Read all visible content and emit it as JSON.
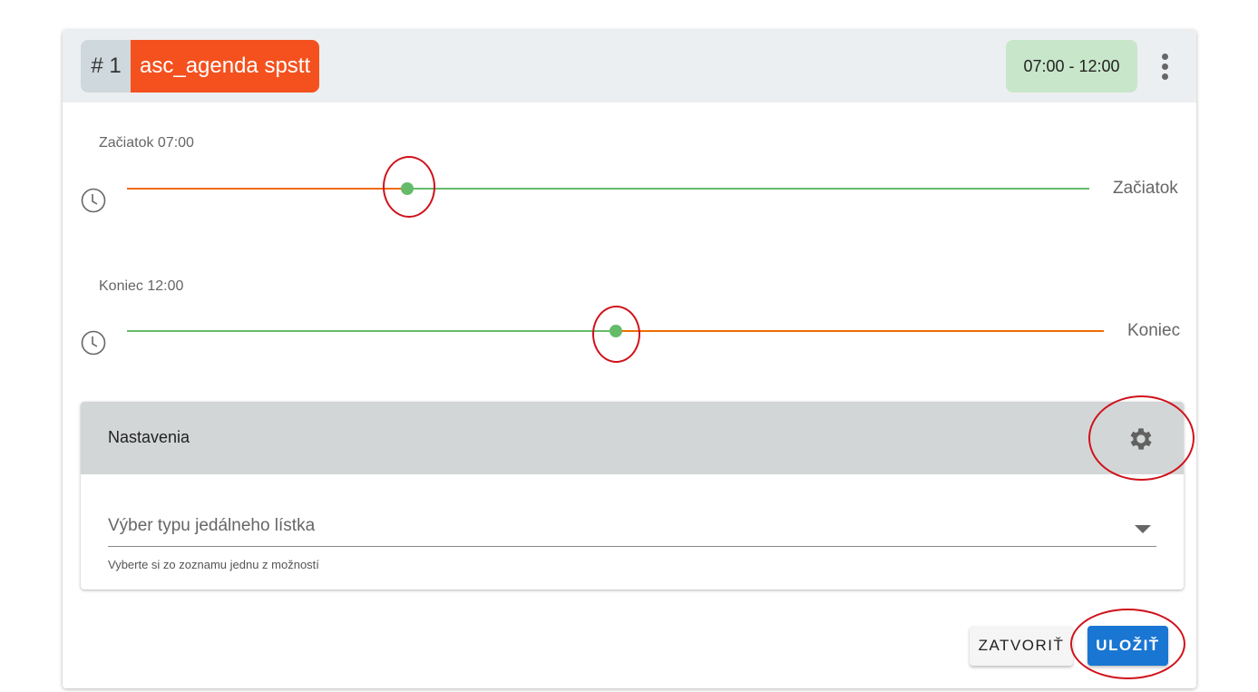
{
  "header": {
    "number": "# 1",
    "name": "asc_agenda spstt",
    "time_range": "07:00 - 12:00",
    "menu_icon": "more-vertical-icon"
  },
  "start": {
    "label": "Začiatok 07:00",
    "side_label": "Začiatok",
    "value_hours": 7,
    "range_hours": [
      0,
      24
    ],
    "icon": "clock-icon"
  },
  "end": {
    "label": "Koniec 12:00",
    "side_label": "Koniec",
    "value_hours": 12,
    "range_hours": [
      0,
      24
    ],
    "icon": "clock-icon"
  },
  "settings": {
    "title": "Nastavenia",
    "icon": "gear-icon",
    "select_placeholder": "Výber typu jedálneho lístka",
    "select_hint": "Vyberte si zo zoznamu jednu z možností"
  },
  "actions": {
    "close": "ZATVORIŤ",
    "save": "ULOŽIŤ"
  },
  "colors": {
    "accent": "#f4511e",
    "active": "#66bb6a",
    "inactive": "#ef6c00",
    "primary": "#1976d2",
    "annotation": "#d0121b"
  }
}
